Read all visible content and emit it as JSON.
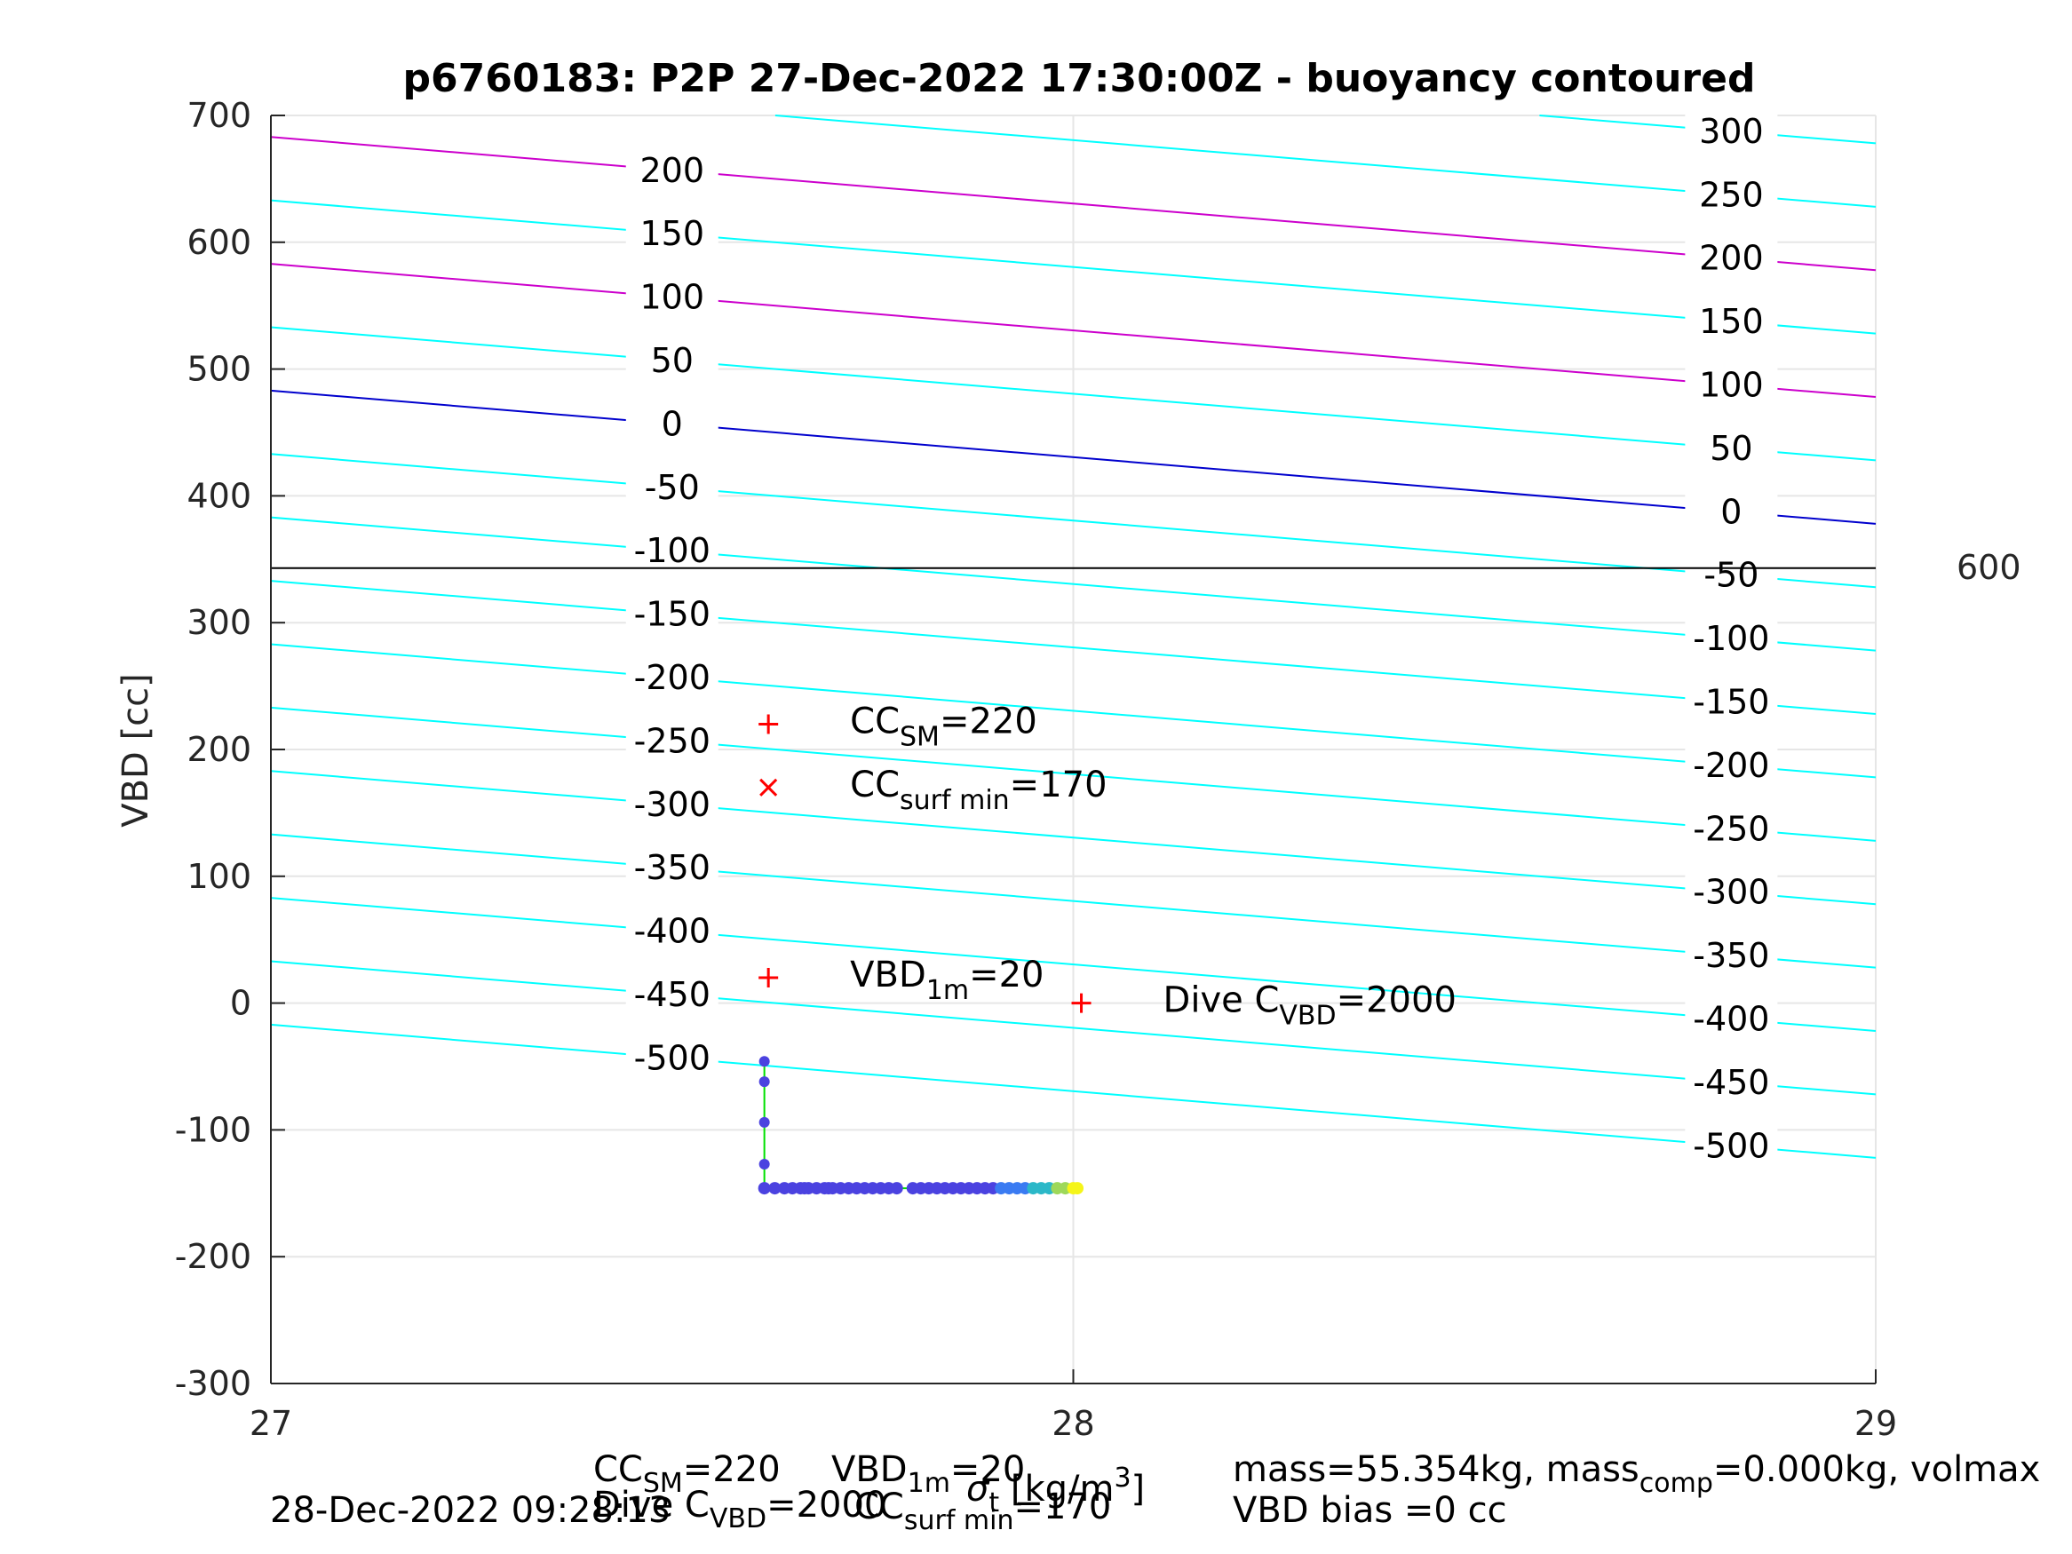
{
  "chart_data": {
    "type": "line",
    "title": "p6760183: P2P 27-Dec-2022 17:30:00Z - buoyancy contoured",
    "xlabel": "σ_t [kg/m^3]",
    "ylabel": "VBD [cc]",
    "xlim": [
      27,
      29
    ],
    "ylim": [
      -300,
      700
    ],
    "x_ticks": [
      "27",
      "28",
      "29"
    ],
    "y_ticks": [
      "-300",
      "-200",
      "-100",
      "0",
      "100",
      "200",
      "300",
      "400",
      "500",
      "600",
      "700"
    ],
    "grid": true,
    "right_label": "600",
    "horizontal_line_y": 343,
    "contours": [
      {
        "level": -500,
        "y_at_27": -17,
        "y_at_29": -122,
        "color": "#00ffff"
      },
      {
        "level": -450,
        "y_at_27": 33,
        "y_at_29": -72,
        "color": "#00ffff"
      },
      {
        "level": -400,
        "y_at_27": 83,
        "y_at_29": -22,
        "color": "#00ffff"
      },
      {
        "level": -350,
        "y_at_27": 133,
        "y_at_29": 28,
        "color": "#00ffff"
      },
      {
        "level": -300,
        "y_at_27": 183,
        "y_at_29": 78,
        "color": "#00ffff"
      },
      {
        "level": -250,
        "y_at_27": 233,
        "y_at_29": 128,
        "color": "#00ffff"
      },
      {
        "level": -200,
        "y_at_27": 283,
        "y_at_29": 178,
        "color": "#00ffff"
      },
      {
        "level": -150,
        "y_at_27": 333,
        "y_at_29": 228,
        "color": "#00ffff"
      },
      {
        "level": -100,
        "y_at_27": 383,
        "y_at_29": 278,
        "color": "#00ffff"
      },
      {
        "level": -50,
        "y_at_27": 433,
        "y_at_29": 328,
        "color": "#00ffff"
      },
      {
        "level": 0,
        "y_at_27": 483,
        "y_at_29": 378,
        "color": "#0000cd"
      },
      {
        "level": 50,
        "y_at_27": 533,
        "y_at_29": 428,
        "color": "#00ffff"
      },
      {
        "level": 100,
        "y_at_27": 583,
        "y_at_29": 478,
        "color": "#cc00cc"
      },
      {
        "level": 150,
        "y_at_27": 633,
        "y_at_29": 528,
        "color": "#00ffff"
      },
      {
        "level": 200,
        "y_at_27": 683,
        "y_at_29": 578,
        "color": "#cc00cc"
      },
      {
        "level": 250,
        "y_at_27": 733,
        "y_at_29": 628,
        "color": "#00ffff"
      },
      {
        "level": 300,
        "y_at_27": 783,
        "y_at_29": 678,
        "color": "#00ffff"
      }
    ],
    "left_labels": [
      "200",
      "150",
      "100",
      "50",
      "0",
      "-50",
      "-100",
      "-150",
      "-200",
      "-250",
      "-300",
      "-350",
      "-400",
      "-450",
      "-500"
    ],
    "right_labels": [
      "300",
      "250",
      "200",
      "150",
      "100",
      "50",
      "0",
      "-50",
      "-100",
      "-150",
      "-200",
      "-250",
      "-300",
      "-350",
      "-400",
      "-450",
      "-500"
    ],
    "markers": [
      {
        "x": 27.62,
        "y": 220,
        "symbol": "+",
        "color": "#ff0000",
        "label": "CC",
        "sub": "SM",
        "value": "=220"
      },
      {
        "x": 27.62,
        "y": 170,
        "symbol": "x",
        "color": "#ff0000",
        "label": "CC",
        "sub": "surf min",
        "value": "=170"
      },
      {
        "x": 27.62,
        "y": 20,
        "symbol": "+",
        "color": "#ff0000",
        "label": "VBD",
        "sub": "1m",
        "value": "=20"
      },
      {
        "x": 28.01,
        "y": 0,
        "symbol": "+",
        "color": "#ff0000",
        "label": "Dive C",
        "sub": "VBD",
        "value": "=2000"
      }
    ],
    "profile": {
      "color": "#00e000",
      "vertical_x": 27.615,
      "vertical_y": [
        -46,
        -62,
        -94,
        -127,
        -146
      ],
      "horizontal_y": -146,
      "horizontal_x": [
        27.615,
        27.628,
        27.64,
        27.65,
        27.66,
        27.665,
        27.67,
        27.68,
        27.69,
        27.695,
        27.7,
        27.71,
        27.72,
        27.73,
        27.74,
        27.75,
        27.76,
        27.77,
        27.78,
        27.8,
        27.81,
        27.82,
        27.83,
        27.84,
        27.85,
        27.86,
        27.87,
        27.88,
        27.89,
        27.9,
        27.91,
        27.92,
        27.93,
        27.94,
        27.95,
        27.96,
        27.97,
        27.98,
        27.99,
        28.0,
        28.005
      ]
    }
  },
  "footer": {
    "line1_cc": "CC",
    "line1_cc_sub": "SM",
    "line1_cc_val": "=220",
    "line1_vbd": "VBD",
    "line1_vbd_sub": "1m",
    "line1_vbd_val": "=20",
    "line1_mass": "mass=55.354kg, mass",
    "line1_mass_sub": "comp",
    "line1_mass_val": "=0.000kg, volmax",
    "line2_date": "28-Dec-2022 09:28:13",
    "line2_dive": "Dive C",
    "line2_dive_sub": "VBD",
    "line2_dive_val": "=2000",
    "line2_cc": "CC",
    "line2_cc_sub": "surf min",
    "line2_cc_val": "=170",
    "line2_bias": "VBD bias =0 cc"
  }
}
